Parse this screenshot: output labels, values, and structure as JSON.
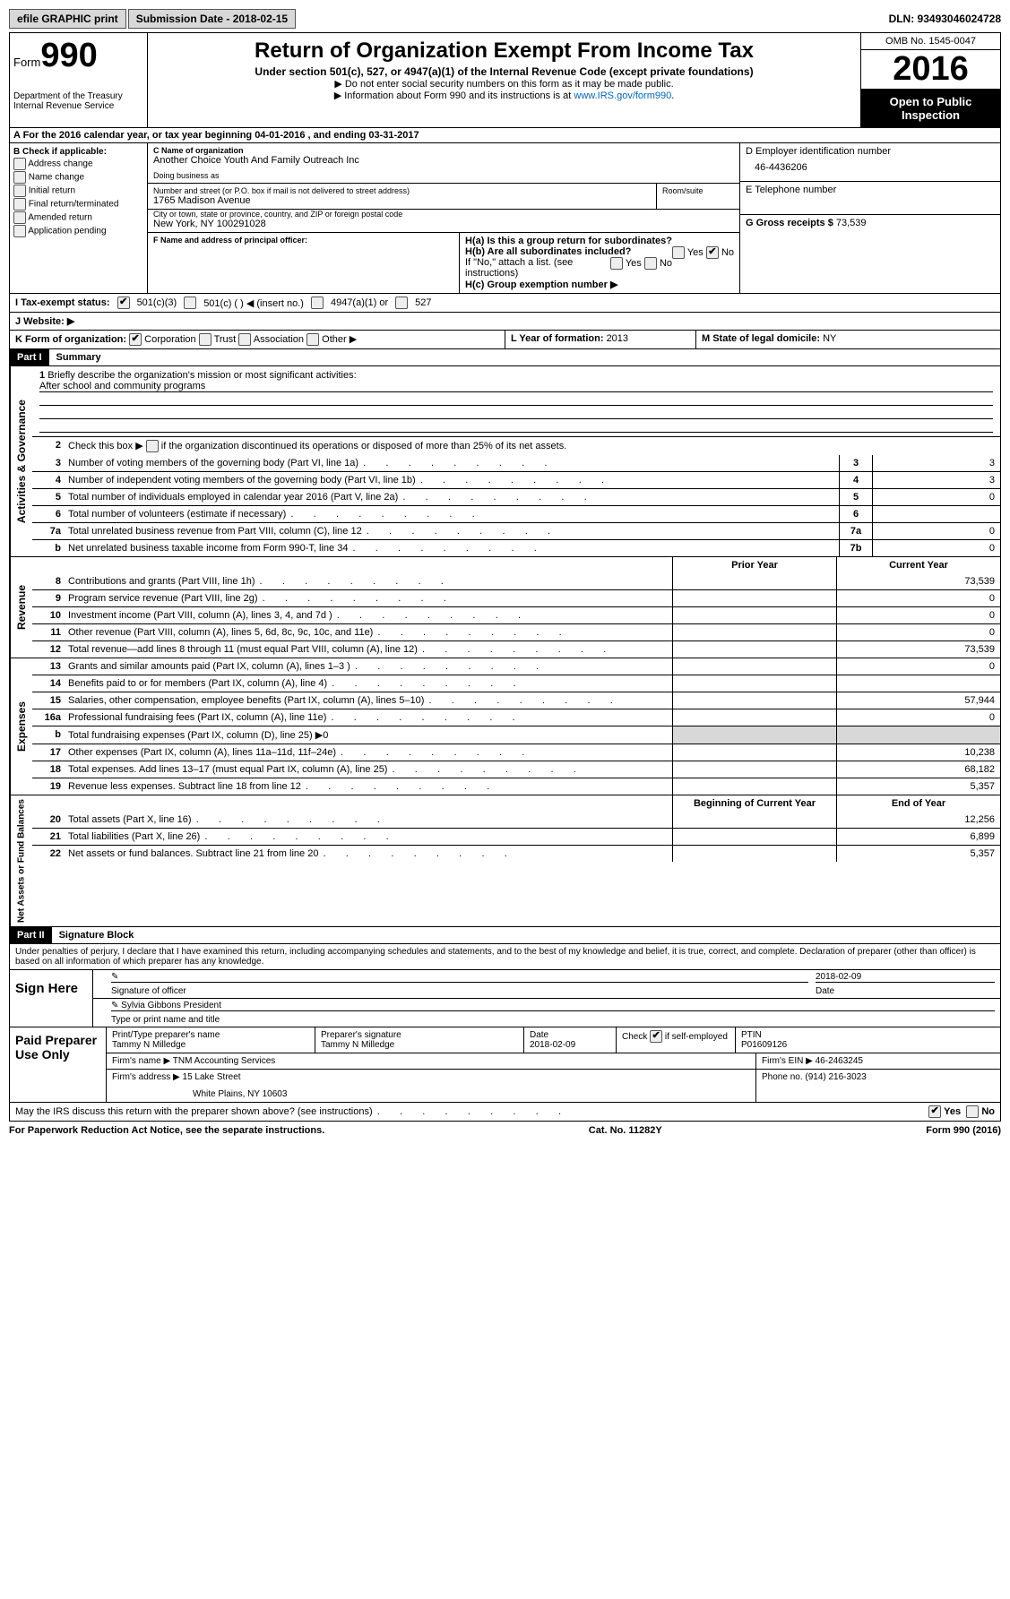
{
  "topbar": {
    "efile": "efile GRAPHIC print",
    "submission": "Submission Date - 2018-02-15",
    "dln": "DLN: 93493046024728"
  },
  "header": {
    "form_label": "Form",
    "form_number": "990",
    "dept1": "Department of the Treasury",
    "dept2": "Internal Revenue Service",
    "title": "Return of Organization Exempt From Income Tax",
    "subtitle": "Under section 501(c), 527, or 4947(a)(1) of the Internal Revenue Code (except private foundations)",
    "hint1": "▶ Do not enter social security numbers on this form as it may be made public.",
    "hint2_pre": "▶ Information about Form 990 and its instructions is at ",
    "hint2_link": "www.IRS.gov/form990",
    "omb": "OMB No. 1545-0047",
    "year": "2016",
    "open": "Open to Public Inspection"
  },
  "rowA": "A  For the 2016 calendar year, or tax year beginning 04-01-2016    , and ending 03-31-2017",
  "colB": {
    "title": "B Check if applicable:",
    "opts": [
      "Address change",
      "Name change",
      "Initial return",
      "Final return/terminated",
      "Amended return",
      "Application pending"
    ]
  },
  "colC": {
    "name_label": "C Name of organization",
    "name": "Another Choice Youth And Family Outreach Inc",
    "dba_label": "Doing business as",
    "addr_label": "Number and street (or P.O. box if mail is not delivered to street address)",
    "room_label": "Room/suite",
    "addr": "1765 Madison Avenue",
    "city_label": "City or town, state or province, country, and ZIP or foreign postal code",
    "city": "New York, NY  100291028",
    "f_label": "F Name and address of principal officer:"
  },
  "colD": {
    "ein_label": "D Employer identification number",
    "ein": "46-4436206",
    "tel_label": "E Telephone number",
    "gross_label": "G Gross receipts $ ",
    "gross": "73,539"
  },
  "hBlock": {
    "ha": "H(a)  Is this a group return for subordinates?",
    "hb": "H(b)  Are all subordinates included?",
    "hb_note": "If \"No,\" attach a list. (see instructions)",
    "hc": "H(c)  Group exemption number ▶"
  },
  "rowI": {
    "label": "I  Tax-exempt status:",
    "o1": "501(c)(3)",
    "o2": "501(c) (   ) ◀ (insert no.)",
    "o3": "4947(a)(1) or",
    "o4": "527"
  },
  "rowJ": "J  Website: ▶",
  "rowK": {
    "label": "K Form of organization:",
    "opts": [
      "Corporation",
      "Trust",
      "Association",
      "Other ▶"
    ],
    "l_label": "L Year of formation: ",
    "l_val": "2013",
    "m_label": "M State of legal domicile: ",
    "m_val": "NY"
  },
  "part1": {
    "hdr": "Part I",
    "title": "Summary",
    "l1": "Briefly describe the organization's mission or most significant activities:",
    "mission": "After school and community programs",
    "l2": "Check this box ▶        if the organization discontinued its operations or disposed of more than 25% of its net assets.",
    "lines_gov": [
      {
        "n": "3",
        "d": "Number of voting members of the governing body (Part VI, line 1a)",
        "b": "3",
        "v": "3"
      },
      {
        "n": "4",
        "d": "Number of independent voting members of the governing body (Part VI, line 1b)",
        "b": "4",
        "v": "3"
      },
      {
        "n": "5",
        "d": "Total number of individuals employed in calendar year 2016 (Part V, line 2a)",
        "b": "5",
        "v": "0"
      },
      {
        "n": "6",
        "d": "Total number of volunteers (estimate if necessary)",
        "b": "6",
        "v": ""
      },
      {
        "n": "7a",
        "d": "Total unrelated business revenue from Part VIII, column (C), line 12",
        "b": "7a",
        "v": "0"
      },
      {
        "n": "b",
        "d": "Net unrelated business taxable income from Form 990-T, line 34",
        "b": "7b",
        "v": "0"
      }
    ],
    "prior_label": "Prior Year",
    "current_label": "Current Year",
    "lines_rev": [
      {
        "n": "8",
        "d": "Contributions and grants (Part VIII, line 1h)",
        "p": "",
        "c": "73,539"
      },
      {
        "n": "9",
        "d": "Program service revenue (Part VIII, line 2g)",
        "p": "",
        "c": "0"
      },
      {
        "n": "10",
        "d": "Investment income (Part VIII, column (A), lines 3, 4, and 7d )",
        "p": "",
        "c": "0"
      },
      {
        "n": "11",
        "d": "Other revenue (Part VIII, column (A), lines 5, 6d, 8c, 9c, 10c, and 11e)",
        "p": "",
        "c": "0"
      },
      {
        "n": "12",
        "d": "Total revenue—add lines 8 through 11 (must equal Part VIII, column (A), line 12)",
        "p": "",
        "c": "73,539"
      }
    ],
    "lines_exp": [
      {
        "n": "13",
        "d": "Grants and similar amounts paid (Part IX, column (A), lines 1–3 )",
        "p": "",
        "c": "0"
      },
      {
        "n": "14",
        "d": "Benefits paid to or for members (Part IX, column (A), line 4)",
        "p": "",
        "c": ""
      },
      {
        "n": "15",
        "d": "Salaries, other compensation, employee benefits (Part IX, column (A), lines 5–10)",
        "p": "",
        "c": "57,944"
      },
      {
        "n": "16a",
        "d": "Professional fundraising fees (Part IX, column (A), line 11e)",
        "p": "",
        "c": "0"
      },
      {
        "n": "b",
        "d": "Total fundraising expenses (Part IX, column (D), line 25) ▶0",
        "shade": true
      },
      {
        "n": "17",
        "d": "Other expenses (Part IX, column (A), lines 11a–11d, 11f–24e)",
        "p": "",
        "c": "10,238"
      },
      {
        "n": "18",
        "d": "Total expenses. Add lines 13–17 (must equal Part IX, column (A), line 25)",
        "p": "",
        "c": "68,182"
      },
      {
        "n": "19",
        "d": "Revenue less expenses. Subtract line 18 from line 12",
        "p": "",
        "c": "5,357"
      }
    ],
    "begin_label": "Beginning of Current Year",
    "end_label": "End of Year",
    "lines_net": [
      {
        "n": "20",
        "d": "Total assets (Part X, line 16)",
        "p": "",
        "c": "12,256"
      },
      {
        "n": "21",
        "d": "Total liabilities (Part X, line 26)",
        "p": "",
        "c": "6,899"
      },
      {
        "n": "22",
        "d": "Net assets or fund balances. Subtract line 21 from line 20",
        "p": "",
        "c": "5,357"
      }
    ],
    "side_gov": "Activities & Governance",
    "side_rev": "Revenue",
    "side_exp": "Expenses",
    "side_net": "Net Assets or Fund Balances"
  },
  "part2": {
    "hdr": "Part II",
    "title": "Signature Block",
    "penalties": "Under penalties of perjury, I declare that I have examined this return, including accompanying schedules and statements, and to the best of my knowledge and belief, it is true, correct, and complete. Declaration of preparer (other than officer) is based on all information of which preparer has any knowledge."
  },
  "sign": {
    "label": "Sign Here",
    "sig_of": "Signature of officer",
    "date_label": "Date",
    "date": "2018-02-09",
    "name": "Sylvia Gibbons President",
    "type_label": "Type or print name and title"
  },
  "prep": {
    "label": "Paid Preparer Use Only",
    "print_label": "Print/Type preparer's name",
    "print_name": "Tammy N Milledge",
    "sig_label": "Preparer's signature",
    "sig_name": "Tammy N Milledge",
    "date_label": "Date",
    "date": "2018-02-09",
    "check_label": "Check         if self-employed",
    "ptin_label": "PTIN",
    "ptin": "P01609126",
    "firm_name_label": "Firm's name      ▶ ",
    "firm_name": "TNM Accounting Services",
    "firm_ein_label": "Firm's EIN ▶ ",
    "firm_ein": "46-2463245",
    "firm_addr_label": "Firm's address ▶ ",
    "firm_addr1": "15 Lake Street",
    "firm_addr2": "White Plains, NY  10603",
    "phone_label": "Phone no. ",
    "phone": "(914) 216-3023"
  },
  "discuss": "May the IRS discuss this return with the preparer shown above? (see instructions)",
  "footer": {
    "left": "For Paperwork Reduction Act Notice, see the separate instructions.",
    "mid": "Cat. No. 11282Y",
    "right": "Form 990 (2016)"
  },
  "yes": "Yes",
  "no": "No"
}
